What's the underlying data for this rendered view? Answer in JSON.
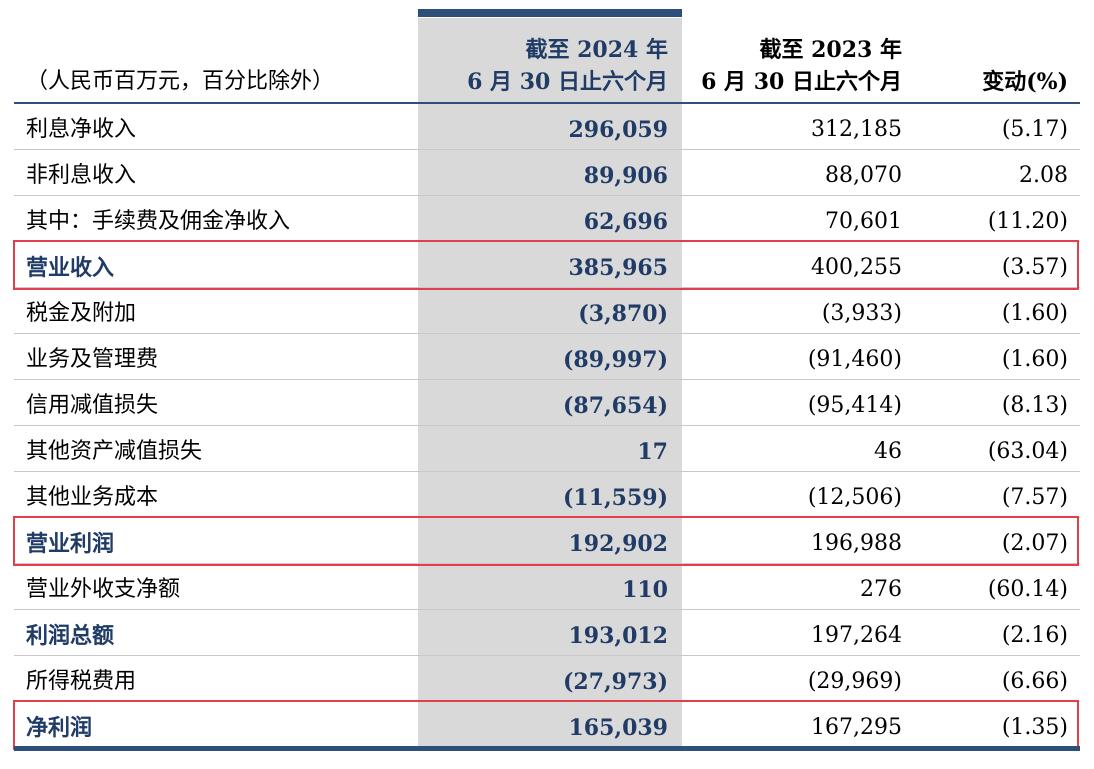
{
  "header": {
    "unit_label": "（人民币百万元，百分比除外）",
    "current_period_line1": "截至 2024 年",
    "current_period_line2": "6 月 30 日止六个月",
    "prior_period_line1": "截至 2023 年",
    "prior_period_line2": "6 月 30 日止六个月",
    "change_label": "变动(%)"
  },
  "rows": [
    {
      "label": "利息净收入",
      "current": "296,059",
      "prior": "312,185",
      "change": "(5.17)",
      "bold": false,
      "highlight": false
    },
    {
      "label": "非利息收入",
      "current": "89,906",
      "prior": "88,070",
      "change": "2.08",
      "bold": false,
      "highlight": false
    },
    {
      "label": "其中：手续费及佣金净收入",
      "current": "62,696",
      "prior": "70,601",
      "change": "(11.20)",
      "bold": false,
      "highlight": false
    },
    {
      "label": "营业收入",
      "current": "385,965",
      "prior": "400,255",
      "change": "(3.57)",
      "bold": true,
      "highlight": true
    },
    {
      "label": "税金及附加",
      "current": "(3,870)",
      "prior": "(3,933)",
      "change": "(1.60)",
      "bold": false,
      "highlight": false
    },
    {
      "label": "业务及管理费",
      "current": "(89,997)",
      "prior": "(91,460)",
      "change": "(1.60)",
      "bold": false,
      "highlight": false
    },
    {
      "label": "信用减值损失",
      "current": "(87,654)",
      "prior": "(95,414)",
      "change": "(8.13)",
      "bold": false,
      "highlight": false
    },
    {
      "label": "其他资产减值损失",
      "current": "17",
      "prior": "46",
      "change": "(63.04)",
      "bold": false,
      "highlight": false
    },
    {
      "label": "其他业务成本",
      "current": "(11,559)",
      "prior": "(12,506)",
      "change": "(7.57)",
      "bold": false,
      "highlight": false
    },
    {
      "label": "营业利润",
      "current": "192,902",
      "prior": "196,988",
      "change": "(2.07)",
      "bold": true,
      "highlight": true
    },
    {
      "label": "营业外收支净额",
      "current": "110",
      "prior": "276",
      "change": "(60.14)",
      "bold": false,
      "highlight": false
    },
    {
      "label": "利润总额",
      "current": "193,012",
      "prior": "197,264",
      "change": "(2.16)",
      "bold": true,
      "highlight": false
    },
    {
      "label": "所得税费用",
      "current": "(27,973)",
      "prior": "(29,969)",
      "change": "(6.66)",
      "bold": false,
      "highlight": false
    },
    {
      "label": "净利润",
      "current": "165,039",
      "prior": "167,295",
      "change": "(1.35)",
      "bold": true,
      "highlight": true
    }
  ],
  "colors": {
    "accent": "#2e4f7a",
    "highlight_border": "#e0404a",
    "shade": "#d9d9d9"
  }
}
